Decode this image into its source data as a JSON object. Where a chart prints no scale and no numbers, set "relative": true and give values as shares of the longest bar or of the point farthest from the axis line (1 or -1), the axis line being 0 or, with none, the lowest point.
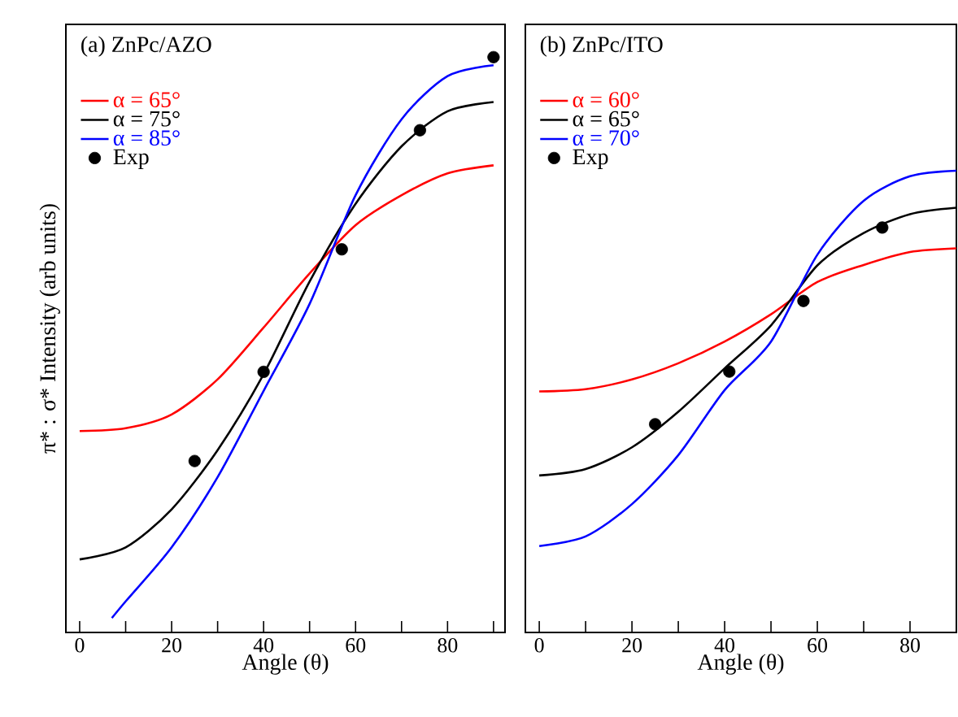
{
  "chart_data": [
    {
      "type": "line",
      "title": "(a) ZnPc/AZO",
      "xlabel": "Angle (θ)",
      "ylabel": "π* : σ* Intensity (arb units)",
      "relative": true,
      "tick_labels": "x",
      "legend": "top left",
      "xlim": [
        -3,
        92.5
      ],
      "xticks": [
        0,
        {
          "value": 10,
          "label": null
        },
        20,
        {
          "value": 30,
          "label": null
        },
        40,
        {
          "value": 50,
          "label": null
        },
        60,
        {
          "value": 70,
          "label": null
        },
        80,
        {
          "value": 90,
          "label": null
        }
      ],
      "series": [
        {
          "name": "α = 65°",
          "color": "#ff0000",
          "x": [
            0,
            10,
            20,
            30,
            40,
            50,
            60,
            70,
            80,
            90
          ],
          "values": [
            0.35,
            0.355,
            0.379,
            0.44,
            0.53,
            0.624,
            0.708,
            0.76,
            0.798,
            0.812
          ]
        },
        {
          "name": "α = 75°",
          "color": "#000000",
          "x": [
            0,
            10,
            20,
            30,
            40,
            50,
            60,
            70,
            80,
            90
          ],
          "values": [
            0.127,
            0.148,
            0.214,
            0.317,
            0.449,
            0.61,
            0.745,
            0.845,
            0.906,
            0.922
          ]
        },
        {
          "name": "α = 85°",
          "color": "#0000ff",
          "x": [
            7,
            10,
            20,
            30,
            40,
            50,
            60,
            70,
            80,
            90
          ],
          "values": [
            0.025,
            0.054,
            0.148,
            0.27,
            0.42,
            0.571,
            0.76,
            0.892,
            0.967,
            0.986
          ]
        },
        {
          "name": "Exp",
          "type": "scatter",
          "marker": "circle",
          "color": "#000000",
          "x": [
            25,
            40,
            57,
            74,
            90
          ],
          "values": [
            0.298,
            0.453,
            0.666,
            0.873,
            1.0
          ]
        }
      ]
    },
    {
      "type": "line",
      "title": "(b) ZnPc/ITO",
      "xlabel": "Angle (θ)",
      "relative": true,
      "tick_labels": "x",
      "legend": "top left",
      "xlim": [
        -3,
        90
      ],
      "xticks": [
        0,
        {
          "value": 10,
          "label": null
        },
        20,
        {
          "value": 30,
          "label": null
        },
        40,
        {
          "value": 50,
          "label": null
        },
        60,
        {
          "value": 70,
          "label": null
        },
        80,
        {
          "value": 90,
          "label": null
        }
      ],
      "series": [
        {
          "name": "α = 60°",
          "color": "#ff0000",
          "x": [
            0,
            10,
            20,
            30,
            40,
            50,
            60,
            70,
            80,
            90
          ],
          "values": [
            0.522,
            0.527,
            0.548,
            0.583,
            0.63,
            0.689,
            0.759,
            0.796,
            0.824,
            0.832
          ]
        },
        {
          "name": "α = 65°",
          "color": "#000000",
          "x": [
            0,
            10,
            20,
            30,
            40,
            50,
            60,
            70,
            80,
            90
          ],
          "values": [
            0.34,
            0.354,
            0.401,
            0.478,
            0.572,
            0.665,
            0.795,
            0.865,
            0.906,
            0.92
          ]
        },
        {
          "name": "α = 70°",
          "color": "#0000ff",
          "x": [
            0,
            10,
            20,
            30,
            40,
            50,
            60,
            70,
            80,
            90
          ],
          "values": [
            0.187,
            0.208,
            0.278,
            0.384,
            0.525,
            0.63,
            0.818,
            0.935,
            0.988,
            1.0
          ]
        },
        {
          "name": "Exp",
          "type": "scatter",
          "marker": "circle",
          "color": "#000000",
          "x": [
            25,
            41,
            57,
            74
          ],
          "values": [
            0.451,
            0.565,
            0.718,
            0.877
          ]
        }
      ]
    }
  ]
}
